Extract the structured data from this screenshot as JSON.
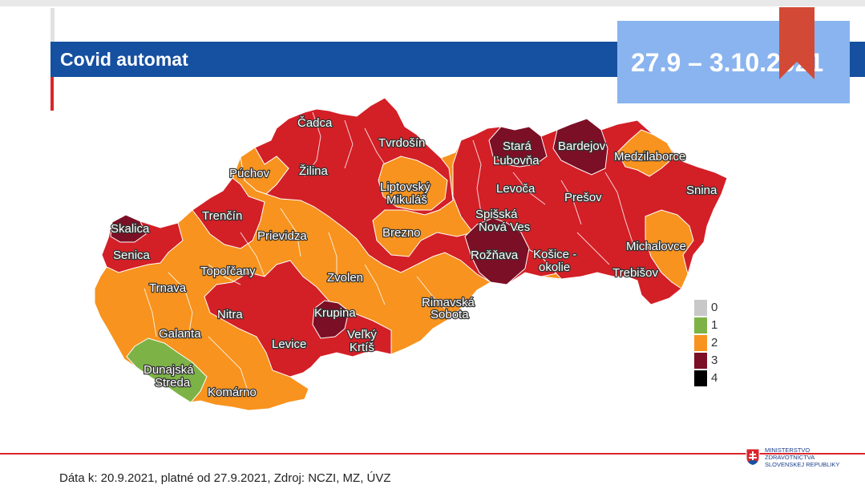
{
  "header": {
    "title": "Covid automat",
    "date_range": "27.9 – 3.10.2021"
  },
  "colors": {
    "title_bar": "#1650a0",
    "date_box": "#8ab4ef",
    "bookmark": "#d24a35",
    "accent_red": "#d9262c",
    "level_0": "#c8c8c8",
    "level_1": "#7db346",
    "level_2": "#f7931e",
    "level_3": "#d31f26",
    "level_4_legend": "#000000",
    "level_4_map": "#7b0f25"
  },
  "map": {
    "labels": [
      {
        "text": "Čadca",
        "level": 3
      },
      {
        "text": "Tvrdošín",
        "level": 3
      },
      {
        "text": "Stará",
        "level": 3
      },
      {
        "text": "Ľubovňa",
        "level": 3
      },
      {
        "text": "Bardejov",
        "level": 3
      },
      {
        "text": "Medzilaborce",
        "level": 2
      },
      {
        "text": "Púchov",
        "level": 2
      },
      {
        "text": "Žilina",
        "level": 3
      },
      {
        "text": "Liptovský",
        "level": 2
      },
      {
        "text": "Mikuláš",
        "level": 2
      },
      {
        "text": "Levoča",
        "level": 3
      },
      {
        "text": "Prešov",
        "level": 3
      },
      {
        "text": "Snina",
        "level": 3
      },
      {
        "text": "Skalica",
        "level": 3
      },
      {
        "text": "Trenčín",
        "level": 3
      },
      {
        "text": "Spišská",
        "level": 3
      },
      {
        "text": "Nová Ves",
        "level": 3
      },
      {
        "text": "Prievidza",
        "level": 2
      },
      {
        "text": "Brezno",
        "level": 3
      },
      {
        "text": "Michalovce",
        "level": 2
      },
      {
        "text": "Senica",
        "level": 3
      },
      {
        "text": "Rožňava",
        "level": 3
      },
      {
        "text": "Košice -",
        "level": 3
      },
      {
        "text": "okolie",
        "level": 3
      },
      {
        "text": "Topoľčany",
        "level": 2
      },
      {
        "text": "Trebišov",
        "level": 3
      },
      {
        "text": "Zvolen",
        "level": 2
      },
      {
        "text": "Trnava",
        "level": 2
      },
      {
        "text": "Rimavská",
        "level": 2
      },
      {
        "text": "Sobota",
        "level": 2
      },
      {
        "text": "Nitra",
        "level": 3
      },
      {
        "text": "Krupina",
        "level": 3
      },
      {
        "text": "Galanta",
        "level": 2
      },
      {
        "text": "Veľký",
        "level": 3
      },
      {
        "text": "Krtíš",
        "level": 3
      },
      {
        "text": "Levice",
        "level": 3
      },
      {
        "text": "Dunajská",
        "level": 1
      },
      {
        "text": "Streda",
        "level": 1
      },
      {
        "text": "Komárno",
        "level": 2
      }
    ]
  },
  "legend": [
    {
      "label": "0",
      "color": "#c8c8c8"
    },
    {
      "label": "1",
      "color": "#7db346"
    },
    {
      "label": "2",
      "color": "#f7931e"
    },
    {
      "label": "3",
      "color": "#7b0f25"
    },
    {
      "label": "4",
      "color": "#000000"
    }
  ],
  "footer": {
    "source_text": "Dáta k: 20.9.2021, platné od 27.9.2021, Zdroj: NCZI, MZ, ÚVZ",
    "ministry_lines": [
      "MINISTERSTVO",
      "ZDRAVOTNÍCTVA",
      "SLOVENSKEJ REPUBLIKY"
    ]
  }
}
